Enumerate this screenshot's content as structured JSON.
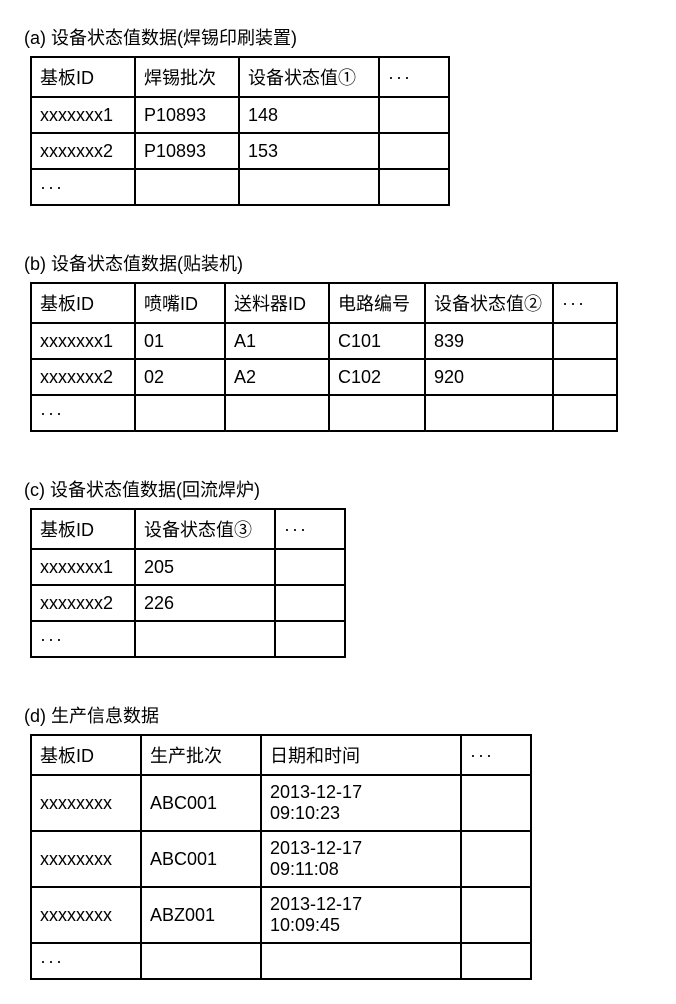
{
  "tables": [
    {
      "caption": "(a) 设备状态值数据(焊锡印刷装置)",
      "widths": [
        104,
        104,
        140,
        70
      ],
      "headers": [
        "基板ID",
        "焊锡批次",
        "设备状态值①",
        "···"
      ],
      "rows": [
        [
          "xxxxxxx1",
          "P10893",
          "148",
          ""
        ],
        [
          "xxxxxxx2",
          "P10893",
          "153",
          ""
        ],
        [
          "···",
          "",
          "",
          ""
        ]
      ]
    },
    {
      "caption": "(b) 设备状态值数据(贴装机)",
      "widths": [
        104,
        90,
        104,
        96,
        128,
        64
      ],
      "headers": [
        "基板ID",
        "喷嘴ID",
        "送料器ID",
        "电路编号",
        "设备状态值②",
        "···"
      ],
      "rows": [
        [
          "xxxxxxx1",
          "01",
          "A1",
          "C101",
          "839",
          ""
        ],
        [
          "xxxxxxx2",
          "02",
          "A2",
          "C102",
          "920",
          ""
        ],
        [
          "···",
          "",
          "",
          "",
          "",
          ""
        ]
      ]
    },
    {
      "caption": "(c) 设备状态值数据(回流焊炉)",
      "widths": [
        104,
        140,
        70
      ],
      "headers": [
        "基板ID",
        "设备状态值③",
        "···"
      ],
      "rows": [
        [
          "xxxxxxx1",
          "205",
          ""
        ],
        [
          "xxxxxxx2",
          "226",
          ""
        ],
        [
          "···",
          "",
          ""
        ]
      ]
    },
    {
      "caption": "(d) 生产信息数据",
      "widths": [
        110,
        120,
        200,
        70
      ],
      "headers": [
        "基板ID",
        "生产批次",
        "日期和时间",
        "···"
      ],
      "rows": [
        [
          "xxxxxxxx",
          "ABC001",
          "2013-12-17\n09:10:23",
          ""
        ],
        [
          "xxxxxxxx",
          "ABC001",
          "2013-12-17\n09:11:08",
          ""
        ],
        [
          "xxxxxxxx",
          "ABZ001",
          "2013-12-17\n10:09:45",
          ""
        ],
        [
          "···",
          "",
          "",
          ""
        ]
      ]
    }
  ]
}
